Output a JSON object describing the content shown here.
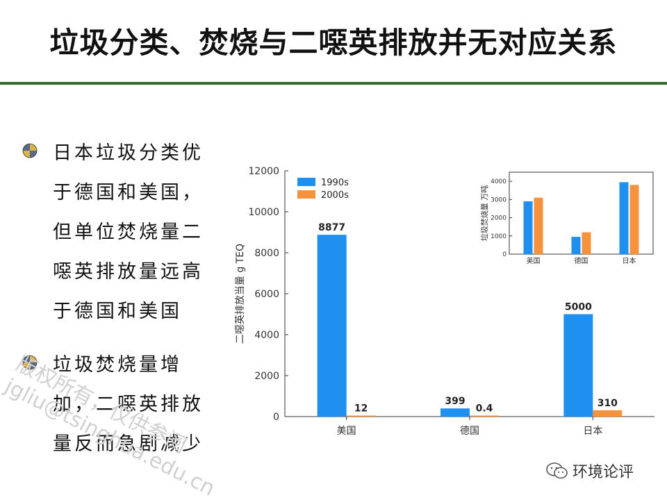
{
  "slide": {
    "title": "垃圾分类、焚烧与二噁英排放并无对应关系",
    "bullets": [
      {
        "lines": [
          "日本垃圾分类优",
          "于德国和美国，",
          "但单位焚烧量二",
          "噁英排放量远高",
          "于德国和美国"
        ]
      },
      {
        "lines": [
          "垃圾焚烧量增",
          "加，二噁英排放",
          "量反而急剧减少"
        ]
      }
    ],
    "watermark": [
      "版权所有，仅供参阅",
      "jgliu@tsinghua.edu.cn"
    ],
    "brand": {
      "label": "环境论评",
      "icon": "wechat-icon"
    }
  },
  "colors": {
    "series_1990s": "#1f8ff0",
    "series_2000s": "#f5923e",
    "rule": "#2e6e2a"
  },
  "chart_data": [
    {
      "type": "bar",
      "categories": [
        "美国",
        "德国",
        "日本"
      ],
      "series": [
        {
          "name": "1990s",
          "values": [
            8877,
            399,
            5000
          ],
          "labels": [
            "8877",
            "399",
            "5000"
          ]
        },
        {
          "name": "2000s",
          "values": [
            12,
            0.4,
            310
          ],
          "labels": [
            "12",
            "0.4",
            "310"
          ]
        }
      ],
      "ylabel": "二噁英排放当量 g TEQ",
      "ylim": [
        0,
        12000
      ],
      "yticks": [
        "0",
        "2000",
        "4000",
        "6000",
        "8000",
        "10000",
        "12000"
      ],
      "legend": "top-left",
      "grid": false
    },
    {
      "type": "bar",
      "categories": [
        "美国",
        "德国",
        "日本"
      ],
      "series": [
        {
          "name": "1990s",
          "values": [
            2900,
            950,
            3950
          ]
        },
        {
          "name": "2000s",
          "values": [
            3100,
            1200,
            3800
          ]
        }
      ],
      "ylabel": "垃圾焚烧量 万吨",
      "ylim": [
        0,
        4500
      ],
      "yticks": [
        "0",
        "1000",
        "2000",
        "3000",
        "4000"
      ],
      "grid": false
    }
  ]
}
